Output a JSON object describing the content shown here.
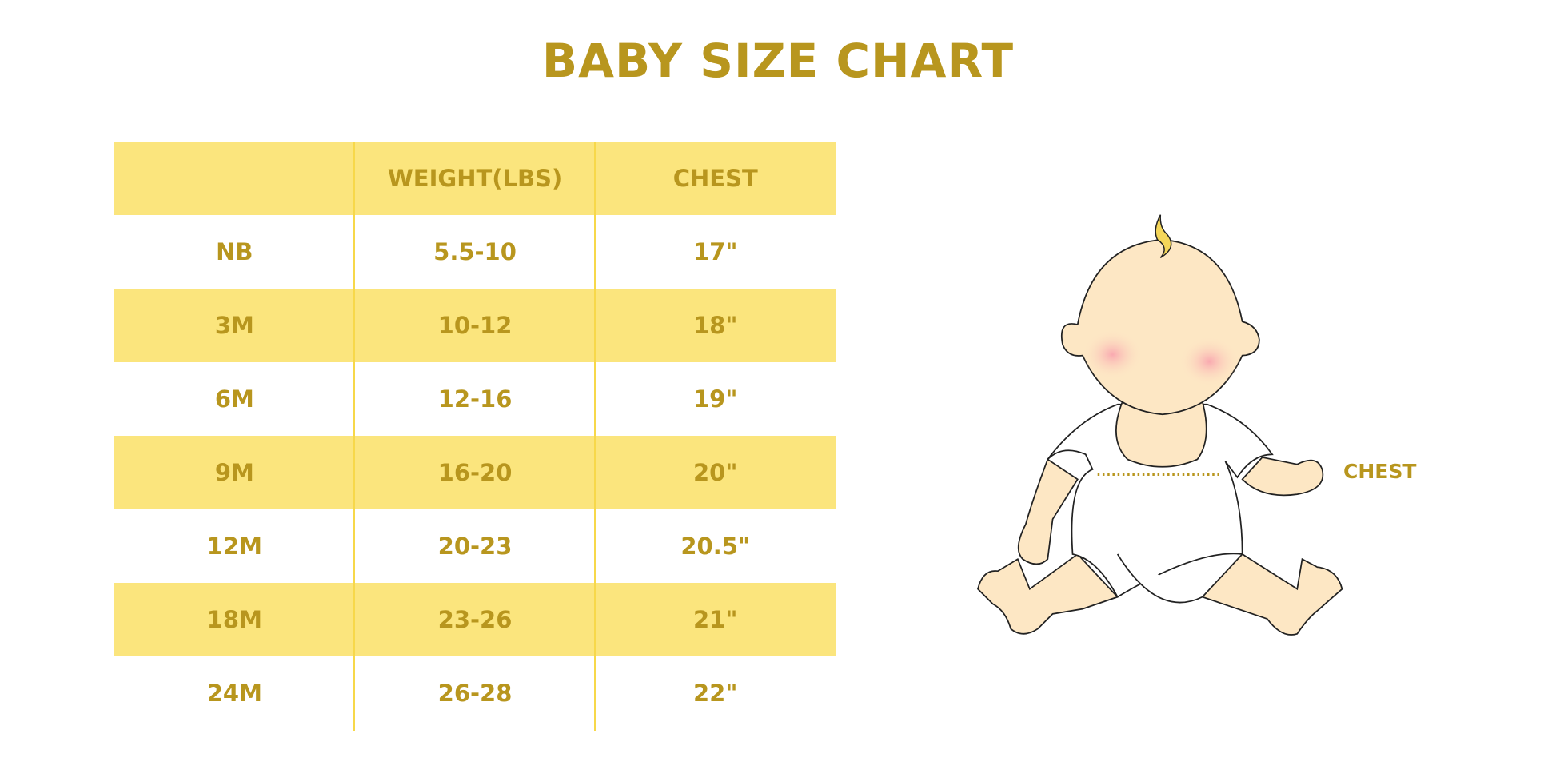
{
  "title": "BABY SIZE CHART",
  "table": {
    "headers": [
      "",
      "WEIGHT(LBS)",
      "CHEST"
    ],
    "rows": [
      [
        "NB",
        "5.5-10",
        "17\""
      ],
      [
        "3M",
        "10-12",
        "18\""
      ],
      [
        "6M",
        "12-16",
        "19\""
      ],
      [
        "9M",
        "16-20",
        "20\""
      ],
      [
        "12M",
        "20-23",
        "20.5\""
      ],
      [
        "18M",
        "23-26",
        "21\""
      ],
      [
        "24M",
        "26-28",
        "22\""
      ]
    ]
  },
  "illustration": {
    "chest_label": "CHEST"
  },
  "colors": {
    "text": "#B8961E",
    "band": "#FBE57D",
    "divider": "#F7D84A",
    "skin": "#FDE7C4"
  }
}
